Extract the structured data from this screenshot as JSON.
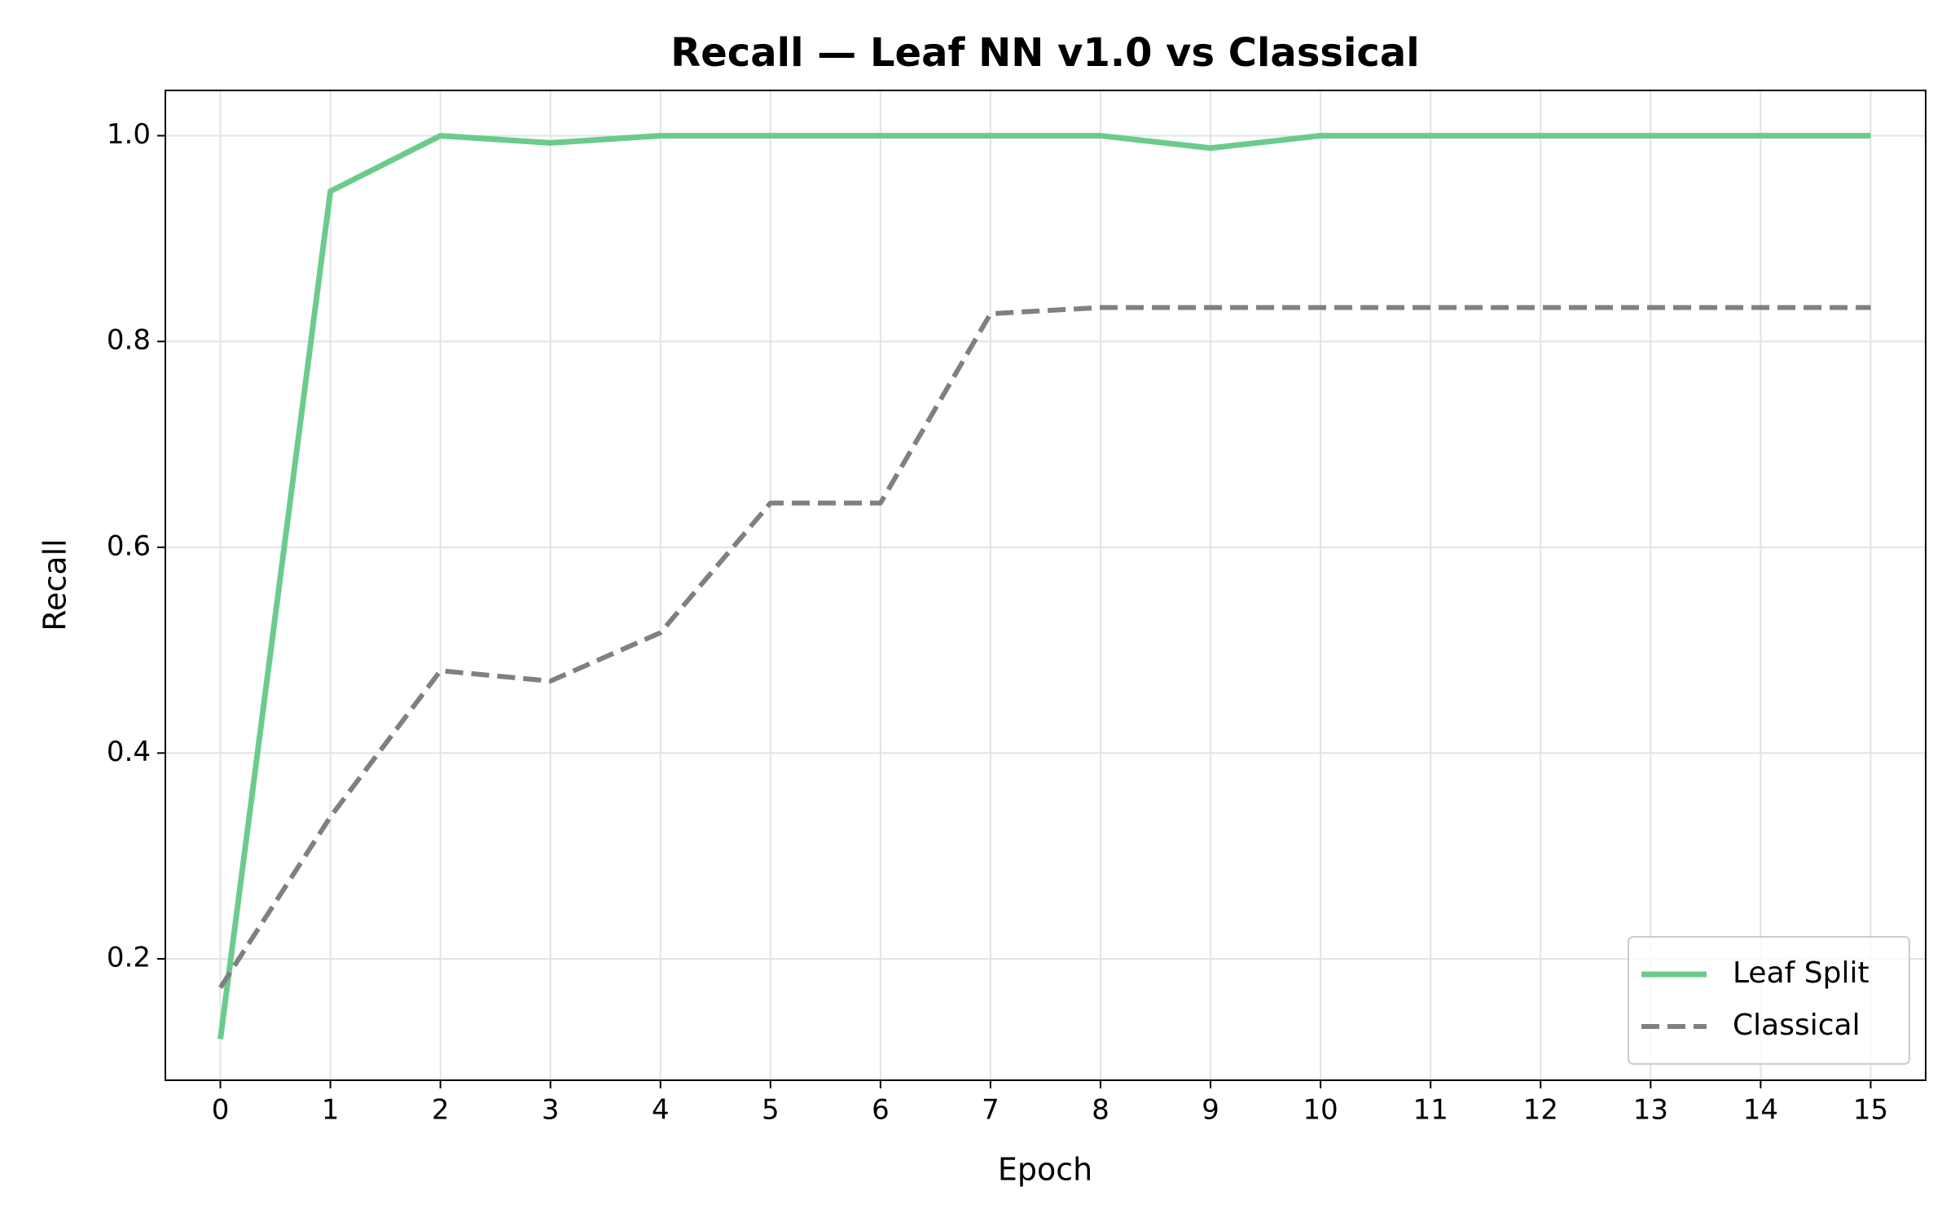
{
  "chart_data": {
    "type": "line",
    "title": "Recall — Leaf NN v1.0 vs Classical",
    "xlabel": "Epoch",
    "ylabel": "Recall",
    "x": [
      0,
      1,
      2,
      3,
      4,
      5,
      6,
      7,
      8,
      9,
      10,
      11,
      12,
      13,
      14,
      15
    ],
    "series": [
      {
        "name": "Leaf Split",
        "color": "#6ccb8c",
        "linestyle": "solid",
        "values": [
          0.122,
          0.946,
          1.0,
          0.993,
          1.0,
          1.0,
          1.0,
          1.0,
          1.0,
          0.988,
          1.0,
          1.0,
          1.0,
          1.0,
          1.0,
          1.0
        ]
      },
      {
        "name": "Classical",
        "color": "#808080",
        "linestyle": "dashed",
        "values": [
          0.172,
          0.338,
          0.48,
          0.47,
          0.517,
          0.643,
          0.643,
          0.827,
          0.833,
          0.833,
          0.833,
          0.833,
          0.833,
          0.833,
          0.833,
          0.833
        ]
      }
    ],
    "xlim": [
      -0.5,
      15.5
    ],
    "xticks": [
      0,
      1,
      2,
      3,
      4,
      5,
      6,
      7,
      8,
      9,
      10,
      11,
      12,
      13,
      14,
      15
    ],
    "ylim": [
      0.082,
      1.044
    ],
    "yticks": [
      0.2,
      0.4,
      0.6,
      0.8,
      {
        "value": 1,
        "label": "1.0"
      }
    ],
    "grid": true,
    "legend": "lower right"
  }
}
